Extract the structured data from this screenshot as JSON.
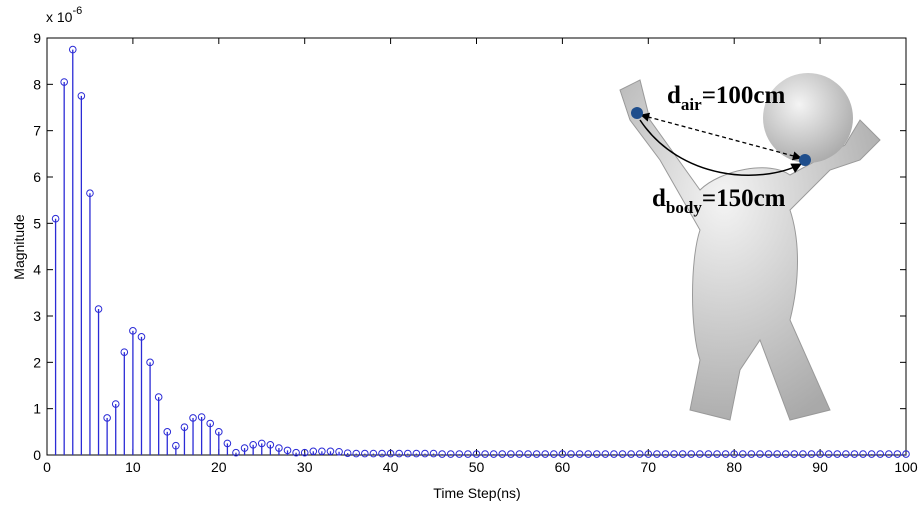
{
  "chart_data": {
    "type": "stem",
    "x_label": "Time Step(ns)",
    "y_label": "Magnitude",
    "y_multiplier": {
      "base": "x 10",
      "exponent": "-6"
    },
    "color": "#2b2bd6",
    "x": [
      1,
      2,
      3,
      4,
      5,
      6,
      7,
      8,
      9,
      10,
      11,
      12,
      13,
      14,
      15,
      16,
      17,
      18,
      19,
      20,
      21,
      22,
      23,
      24,
      25,
      26,
      27,
      28,
      29,
      30,
      31,
      32,
      33,
      34,
      35,
      36,
      37,
      38,
      39,
      40,
      41,
      42,
      43,
      44,
      45,
      46,
      47,
      48,
      49,
      50,
      51,
      52,
      53,
      54,
      55,
      56,
      57,
      58,
      59,
      60,
      61,
      62,
      63,
      64,
      65,
      66,
      67,
      68,
      69,
      70,
      71,
      72,
      73,
      74,
      75,
      76,
      77,
      78,
      79,
      80,
      81,
      82,
      83,
      84,
      85,
      86,
      87,
      88,
      89,
      90,
      91,
      92,
      93,
      94,
      95,
      96,
      97,
      98,
      99,
      100
    ],
    "values": [
      5.1,
      8.05,
      8.75,
      7.75,
      5.65,
      3.15,
      0.8,
      1.1,
      2.22,
      2.68,
      2.55,
      2.0,
      1.25,
      0.5,
      0.2,
      0.6,
      0.8,
      0.82,
      0.68,
      0.5,
      0.25,
      0.05,
      0.15,
      0.22,
      0.25,
      0.22,
      0.15,
      0.1,
      0.05,
      0.05,
      0.08,
      0.08,
      0.08,
      0.07,
      0.04,
      0.03,
      0.03,
      0.03,
      0.03,
      0.03,
      0.03,
      0.03,
      0.03,
      0.03,
      0.03,
      0.02,
      0.02,
      0.02,
      0.02,
      0.02,
      0.02,
      0.02,
      0.02,
      0.02,
      0.02,
      0.02,
      0.02,
      0.02,
      0.02,
      0.02,
      0.02,
      0.02,
      0.02,
      0.02,
      0.02,
      0.02,
      0.02,
      0.02,
      0.02,
      0.02,
      0.02,
      0.02,
      0.02,
      0.02,
      0.02,
      0.02,
      0.02,
      0.02,
      0.02,
      0.02,
      0.02,
      0.02,
      0.02,
      0.02,
      0.02,
      0.02,
      0.02,
      0.02,
      0.02,
      0.02,
      0.02,
      0.02,
      0.02,
      0.02,
      0.02,
      0.02,
      0.02,
      0.02,
      0.02,
      0.02
    ],
    "xlim": [
      0,
      100
    ],
    "xticks": [
      0,
      10,
      20,
      30,
      40,
      50,
      60,
      70,
      80,
      90,
      100
    ],
    "ylim": [
      0,
      9
    ],
    "yticks": [
      0,
      1,
      2,
      3,
      4,
      5,
      6,
      7,
      8,
      9
    ],
    "annotations": {
      "air": {
        "symbol": "d",
        "subscript": "air",
        "text": "=100cm"
      },
      "body": {
        "symbol": "d",
        "subscript": "body",
        "text": "=150cm"
      }
    }
  }
}
